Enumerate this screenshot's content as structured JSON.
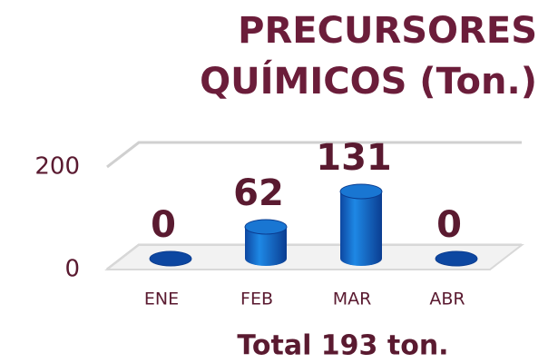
{
  "chart_data": {
    "type": "bar",
    "title": [
      "PRECURSORES",
      "QUÍMICOS (Ton.)"
    ],
    "categories": [
      "ENE",
      "FEB",
      "MAR",
      "ABR"
    ],
    "values": [
      0,
      62,
      131,
      0
    ],
    "color": "#1565c0",
    "ylim": [
      0,
      200
    ],
    "yticks": [
      0,
      200
    ],
    "grid": true,
    "annotation": "Total 193 ton."
  }
}
